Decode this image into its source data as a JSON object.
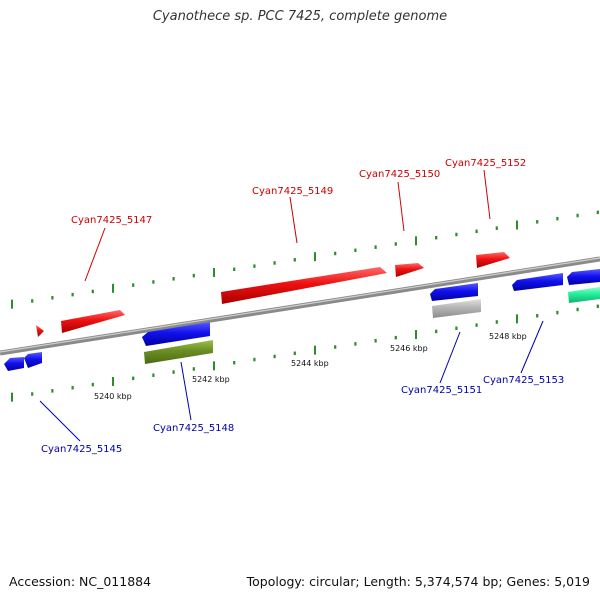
{
  "title": "Cyanothece sp. PCC 7425, complete genome",
  "footer": {
    "accession": "Accession: NC_011884",
    "topology": "Topology: circular; Length: 5,374,574 bp; Genes: 5,019"
  },
  "colors": {
    "forward_gene": "#ee1111",
    "reverse_gene": "#1111ee",
    "olive_feature": "#6b8e23",
    "grey_feature": "#b5b5b5",
    "teal_feature": "#22ee99",
    "tick": "#2e8b2e",
    "label_forward": "#cc0000",
    "label_reverse": "#0000aa"
  },
  "scale_labels": [
    "5240 kbp",
    "5242 kbp",
    "5244 kbp",
    "5246 kbp",
    "5248 kbp"
  ],
  "gene_labels": {
    "forward": [
      "Cyan7425_5147",
      "Cyan7425_5149",
      "Cyan7425_5150",
      "Cyan7425_5152"
    ],
    "reverse": [
      "Cyan7425_5145",
      "Cyan7425_5148",
      "Cyan7425_5151",
      "Cyan7425_5153"
    ]
  }
}
